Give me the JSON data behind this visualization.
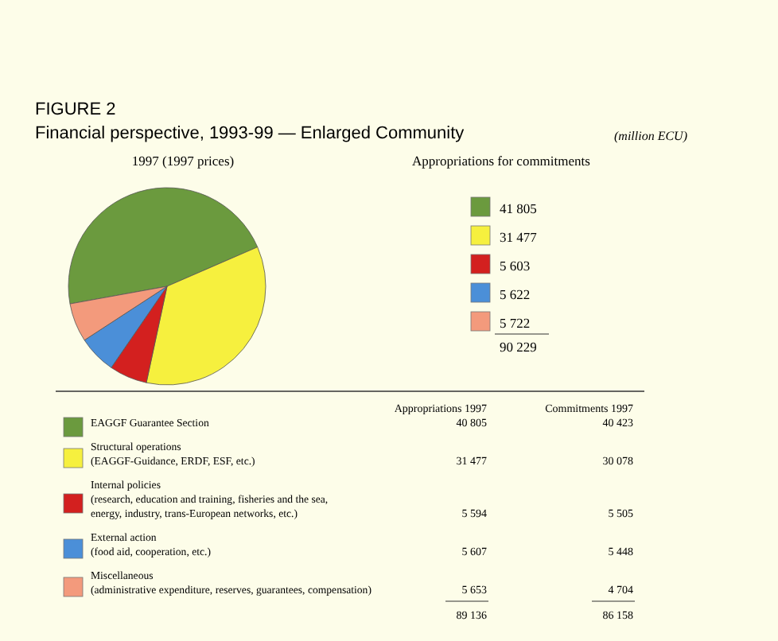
{
  "chart_data": [
    {
      "type": "pie",
      "title": "FIGURE 2",
      "subtitle": "Financial perspective, 1993-99 — Enlarged Community",
      "annotations": [
        "(million ECU)",
        "1997 (1997 prices)"
      ],
      "legend_title": "Appropriations for commitments",
      "legend": "right",
      "categories": [
        "41 805",
        "31 477",
        "5 603",
        "5 622",
        "5 722"
      ],
      "values": [
        41805,
        31477,
        5603,
        5622,
        5722
      ],
      "totals": [
        "90 229"
      ],
      "colors": [
        "#6b9a3e",
        "#f6f03e",
        "#d3201f",
        "#4b8fd8",
        "#f39a7c"
      ]
    },
    {
      "type": "other",
      "categories": [
        "EAGGF Guarantee Section",
        "Structural operations\n(EAGGF-Guidance, ERDF, ESF, etc.)",
        "Internal policies\n(research, education and training, fisheries and the sea,\nenergy, industry, trans-European networks, etc.)",
        "External action\n(food aid, cooperation, etc.)",
        "Miscellaneous\n(administrative expenditure, reserves, guarantees, compensation)"
      ],
      "colors": [
        "#6b9a3e",
        "#f6f03e",
        "#d3201f",
        "#4b8fd8",
        "#f39a7c"
      ],
      "data_labels": true,
      "series": [
        {
          "name": "Appropriations 1997",
          "values": [
            40805,
            31477,
            5594,
            5607,
            5653
          ]
        },
        {
          "name": "Commitments 1997",
          "values": [
            40423,
            30078,
            5505,
            5448,
            4704
          ]
        }
      ],
      "totals": [
        "89 136",
        "86 158"
      ]
    }
  ]
}
